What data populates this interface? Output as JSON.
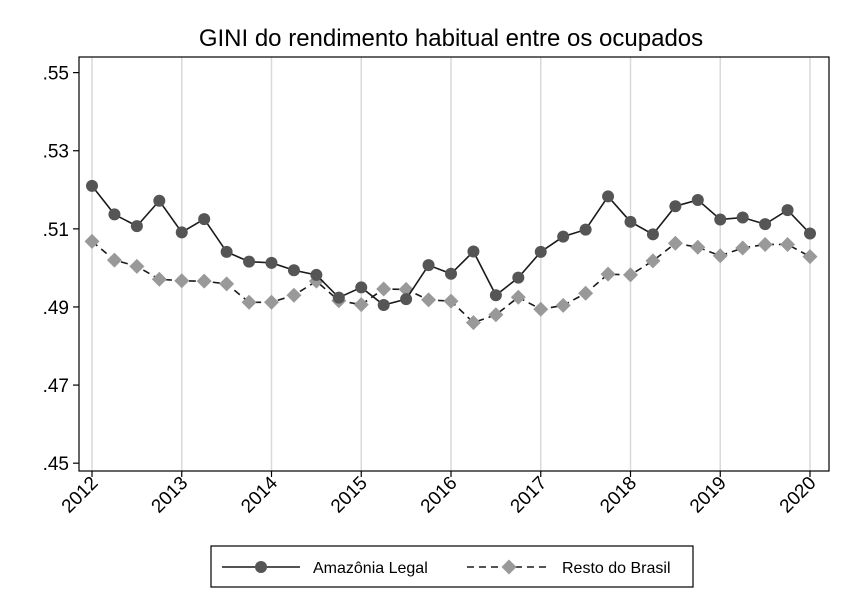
{
  "chart_data": {
    "type": "line",
    "title": "GINI do rendimento habitual entre os ocupados",
    "xlabel": "",
    "ylabel": "",
    "x_ticks": [
      "2012",
      "2013",
      "2014",
      "2015",
      "2016",
      "2017",
      "2018",
      "2019",
      "2020"
    ],
    "y_ticks": [
      ".45",
      ".47",
      ".49",
      ".51",
      ".53",
      ".55"
    ],
    "y_tick_values": [
      0.45,
      0.47,
      0.49,
      0.51,
      0.53,
      0.55
    ],
    "xlim": [
      2012,
      2020
    ],
    "ylim": [
      0.448,
      0.554
    ],
    "grid": "vertical",
    "legend_position": "bottom",
    "x": [
      2012.0,
      2012.25,
      2012.5,
      2012.75,
      2013.0,
      2013.25,
      2013.5,
      2013.75,
      2014.0,
      2014.25,
      2014.5,
      2014.75,
      2015.0,
      2015.25,
      2015.5,
      2015.75,
      2016.0,
      2016.25,
      2016.5,
      2016.75,
      2017.0,
      2017.25,
      2017.5,
      2017.75,
      2018.0,
      2018.25,
      2018.5,
      2018.75,
      2019.0,
      2019.25,
      2019.5,
      2019.75,
      2020.0
    ],
    "series": [
      {
        "name": "Amazônia Legal",
        "color": "#1a1a1a",
        "marker_color": "#555555",
        "marker": "circle",
        "line_style": "solid",
        "values": [
          0.521,
          0.5137,
          0.5107,
          0.5172,
          0.5091,
          0.5125,
          0.5041,
          0.5016,
          0.5013,
          0.4994,
          0.4982,
          0.4924,
          0.495,
          0.4905,
          0.492,
          0.5007,
          0.4985,
          0.5042,
          0.493,
          0.4975,
          0.5041,
          0.508,
          0.5098,
          0.5183,
          0.5118,
          0.5086,
          0.5158,
          0.5174,
          0.5124,
          0.5129,
          0.5112,
          0.5148,
          0.5088
        ]
      },
      {
        "name": "Resto do Brasil",
        "color": "#1a1a1a",
        "marker_color": "#999999",
        "marker": "diamond",
        "line_style": "dashed",
        "values": [
          0.5068,
          0.502,
          0.5004,
          0.4971,
          0.4967,
          0.4966,
          0.4959,
          0.4912,
          0.4912,
          0.493,
          0.4966,
          0.4916,
          0.4906,
          0.4946,
          0.4945,
          0.4918,
          0.4915,
          0.486,
          0.488,
          0.4925,
          0.4894,
          0.4904,
          0.4935,
          0.4984,
          0.4982,
          0.5018,
          0.5063,
          0.5053,
          0.5031,
          0.5051,
          0.506,
          0.506,
          0.5029
        ]
      }
    ]
  }
}
